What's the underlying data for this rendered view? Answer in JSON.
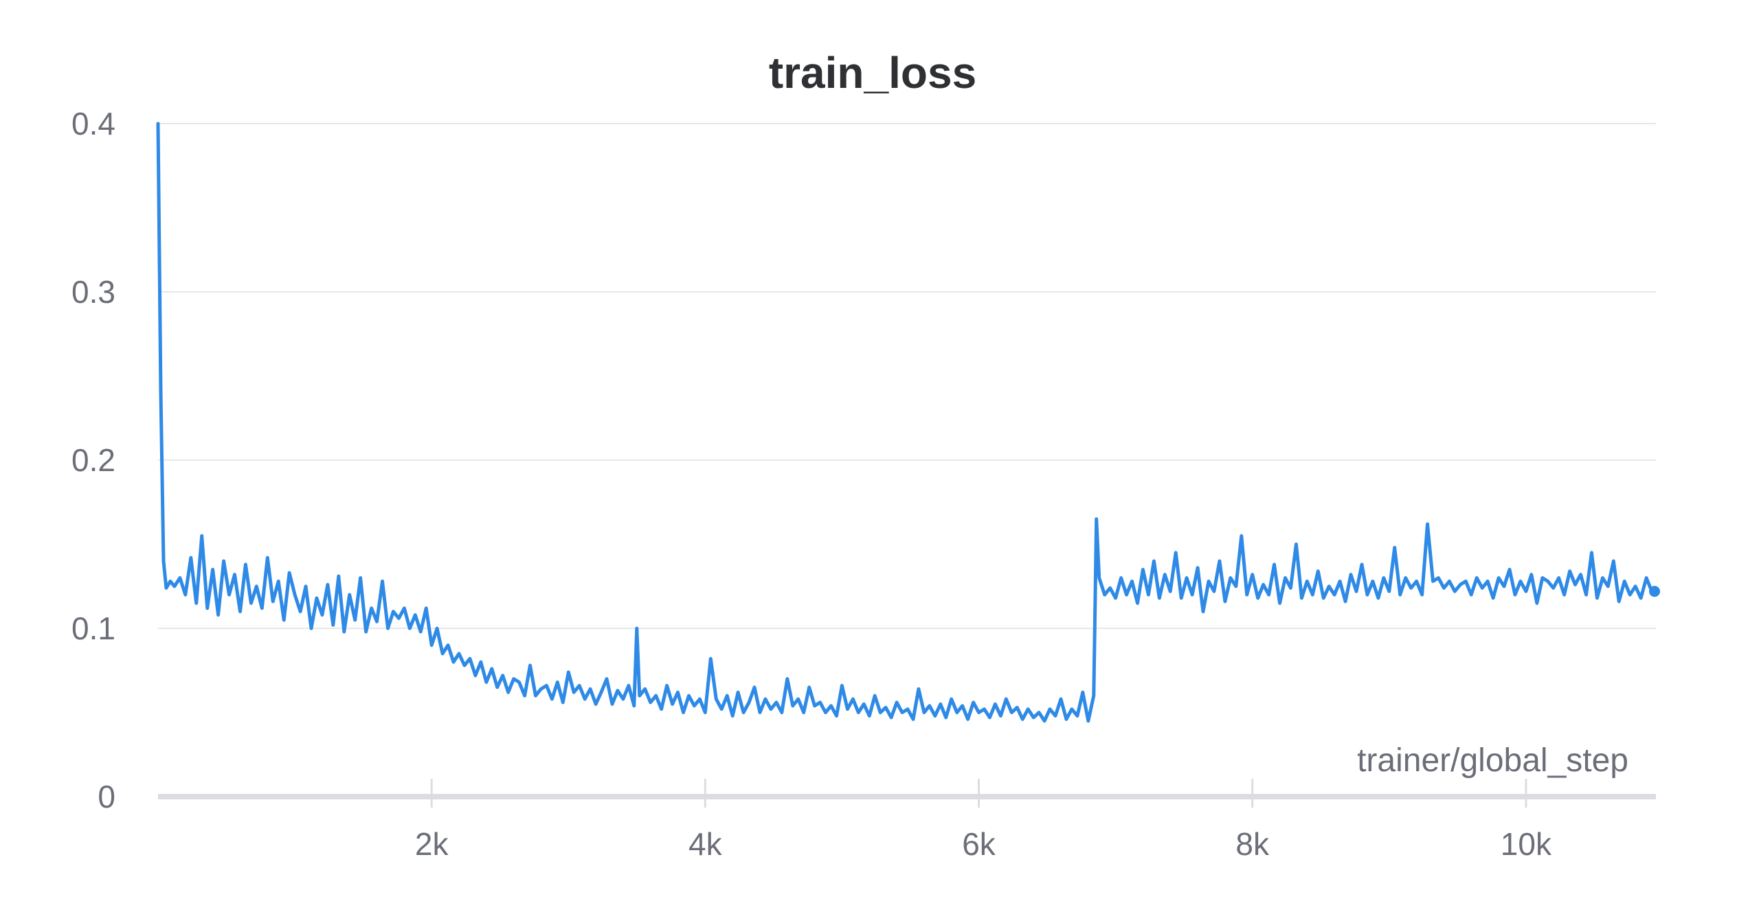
{
  "chart_data": {
    "type": "line",
    "title": "train_loss",
    "xlabel": "trainer/global_step",
    "ylabel": "",
    "xlim": [
      0,
      10950
    ],
    "ylim": [
      0,
      0.4
    ],
    "x_ticks": [
      2000,
      4000,
      6000,
      8000,
      10000
    ],
    "x_tick_labels": [
      "2k",
      "4k",
      "6k",
      "8k",
      "10k"
    ],
    "y_ticks": [
      0,
      0.1,
      0.2,
      0.3,
      0.4
    ],
    "y_tick_labels": [
      "0",
      "0.1",
      "0.2",
      "0.3",
      "0.4"
    ],
    "grid": true,
    "legend": "none",
    "series": [
      {
        "color": "#2e8ae6",
        "x": [
          0,
          20,
          40,
          60,
          90,
          120,
          160,
          200,
          240,
          280,
          320,
          360,
          400,
          440,
          480,
          520,
          560,
          600,
          640,
          680,
          720,
          760,
          800,
          840,
          880,
          920,
          960,
          1000,
          1040,
          1080,
          1120,
          1160,
          1200,
          1240,
          1280,
          1320,
          1360,
          1400,
          1440,
          1480,
          1520,
          1560,
          1600,
          1640,
          1680,
          1720,
          1760,
          1800,
          1840,
          1880,
          1920,
          1960,
          2000,
          2040,
          2080,
          2120,
          2160,
          2200,
          2240,
          2280,
          2320,
          2360,
          2400,
          2440,
          2480,
          2520,
          2560,
          2600,
          2640,
          2680,
          2720,
          2760,
          2800,
          2840,
          2880,
          2920,
          2960,
          3000,
          3040,
          3080,
          3120,
          3160,
          3200,
          3240,
          3280,
          3320,
          3360,
          3400,
          3440,
          3480,
          3500,
          3520,
          3560,
          3600,
          3640,
          3680,
          3720,
          3760,
          3800,
          3840,
          3880,
          3920,
          3960,
          4000,
          4040,
          4080,
          4120,
          4160,
          4200,
          4240,
          4280,
          4320,
          4360,
          4400,
          4440,
          4480,
          4520,
          4560,
          4600,
          4640,
          4680,
          4720,
          4760,
          4800,
          4840,
          4880,
          4920,
          4960,
          5000,
          5040,
          5080,
          5120,
          5160,
          5200,
          5240,
          5280,
          5320,
          5360,
          5400,
          5440,
          5480,
          5520,
          5560,
          5600,
          5640,
          5680,
          5720,
          5760,
          5800,
          5840,
          5880,
          5920,
          5960,
          6000,
          6040,
          6080,
          6120,
          6160,
          6200,
          6240,
          6280,
          6320,
          6360,
          6400,
          6440,
          6480,
          6520,
          6560,
          6600,
          6640,
          6680,
          6720,
          6760,
          6800,
          6840,
          6860,
          6880,
          6920,
          6960,
          7000,
          7040,
          7080,
          7120,
          7160,
          7200,
          7240,
          7280,
          7320,
          7360,
          7400,
          7440,
          7480,
          7520,
          7560,
          7600,
          7640,
          7680,
          7720,
          7760,
          7800,
          7840,
          7880,
          7920,
          7960,
          8000,
          8040,
          8080,
          8120,
          8160,
          8200,
          8240,
          8280,
          8320,
          8360,
          8400,
          8440,
          8480,
          8520,
          8560,
          8600,
          8640,
          8680,
          8720,
          8760,
          8800,
          8840,
          8880,
          8920,
          8960,
          9000,
          9040,
          9080,
          9120,
          9160,
          9200,
          9240,
          9280,
          9320,
          9360,
          9400,
          9440,
          9480,
          9520,
          9560,
          9600,
          9640,
          9680,
          9720,
          9760,
          9800,
          9840,
          9880,
          9920,
          9960,
          10000,
          10040,
          10080,
          10120,
          10160,
          10200,
          10240,
          10280,
          10320,
          10360,
          10400,
          10440,
          10480,
          10520,
          10560,
          10600,
          10640,
          10680,
          10720,
          10760,
          10800,
          10840,
          10880,
          10920,
          10940
        ],
        "y": [
          0.4,
          0.24,
          0.14,
          0.124,
          0.128,
          0.125,
          0.13,
          0.12,
          0.142,
          0.115,
          0.155,
          0.112,
          0.135,
          0.108,
          0.14,
          0.12,
          0.132,
          0.11,
          0.138,
          0.115,
          0.125,
          0.112,
          0.142,
          0.116,
          0.128,
          0.105,
          0.133,
          0.12,
          0.11,
          0.125,
          0.1,
          0.118,
          0.108,
          0.126,
          0.102,
          0.131,
          0.098,
          0.12,
          0.105,
          0.13,
          0.098,
          0.112,
          0.104,
          0.128,
          0.1,
          0.11,
          0.106,
          0.112,
          0.1,
          0.108,
          0.098,
          0.112,
          0.09,
          0.1,
          0.085,
          0.09,
          0.08,
          0.085,
          0.078,
          0.082,
          0.072,
          0.08,
          0.068,
          0.076,
          0.065,
          0.072,
          0.062,
          0.07,
          0.068,
          0.06,
          0.078,
          0.06,
          0.064,
          0.066,
          0.058,
          0.068,
          0.056,
          0.074,
          0.062,
          0.066,
          0.058,
          0.064,
          0.055,
          0.062,
          0.07,
          0.055,
          0.063,
          0.058,
          0.066,
          0.054,
          0.1,
          0.06,
          0.064,
          0.056,
          0.06,
          0.052,
          0.066,
          0.055,
          0.062,
          0.05,
          0.06,
          0.054,
          0.058,
          0.05,
          0.082,
          0.058,
          0.052,
          0.06,
          0.048,
          0.062,
          0.05,
          0.056,
          0.065,
          0.05,
          0.058,
          0.052,
          0.056,
          0.05,
          0.07,
          0.054,
          0.058,
          0.05,
          0.065,
          0.054,
          0.056,
          0.05,
          0.054,
          0.048,
          0.066,
          0.052,
          0.058,
          0.05,
          0.055,
          0.048,
          0.06,
          0.05,
          0.053,
          0.047,
          0.056,
          0.05,
          0.052,
          0.046,
          0.064,
          0.05,
          0.054,
          0.048,
          0.055,
          0.047,
          0.058,
          0.05,
          0.054,
          0.046,
          0.056,
          0.05,
          0.052,
          0.047,
          0.055,
          0.048,
          0.058,
          0.05,
          0.053,
          0.046,
          0.052,
          0.047,
          0.05,
          0.045,
          0.052,
          0.048,
          0.058,
          0.046,
          0.052,
          0.048,
          0.062,
          0.045,
          0.06,
          0.165,
          0.13,
          0.12,
          0.124,
          0.118,
          0.13,
          0.12,
          0.128,
          0.115,
          0.135,
          0.12,
          0.14,
          0.118,
          0.132,
          0.122,
          0.145,
          0.118,
          0.13,
          0.12,
          0.136,
          0.11,
          0.128,
          0.122,
          0.14,
          0.116,
          0.13,
          0.125,
          0.155,
          0.12,
          0.132,
          0.118,
          0.126,
          0.12,
          0.138,
          0.115,
          0.13,
          0.124,
          0.15,
          0.118,
          0.128,
          0.12,
          0.134,
          0.118,
          0.125,
          0.12,
          0.128,
          0.116,
          0.132,
          0.122,
          0.138,
          0.12,
          0.128,
          0.118,
          0.13,
          0.122,
          0.148,
          0.12,
          0.13,
          0.124,
          0.128,
          0.12,
          0.162,
          0.128,
          0.13,
          0.124,
          0.128,
          0.122,
          0.126,
          0.128,
          0.12,
          0.13,
          0.124,
          0.128,
          0.118,
          0.13,
          0.125,
          0.135,
          0.12,
          0.128,
          0.122,
          0.132,
          0.115,
          0.13,
          0.128,
          0.124,
          0.13,
          0.12,
          0.134,
          0.126,
          0.132,
          0.12,
          0.145,
          0.118,
          0.13,
          0.125,
          0.14,
          0.116,
          0.128,
          0.12,
          0.125,
          0.118,
          0.13,
          0.122,
          0.122
        ]
      }
    ]
  }
}
